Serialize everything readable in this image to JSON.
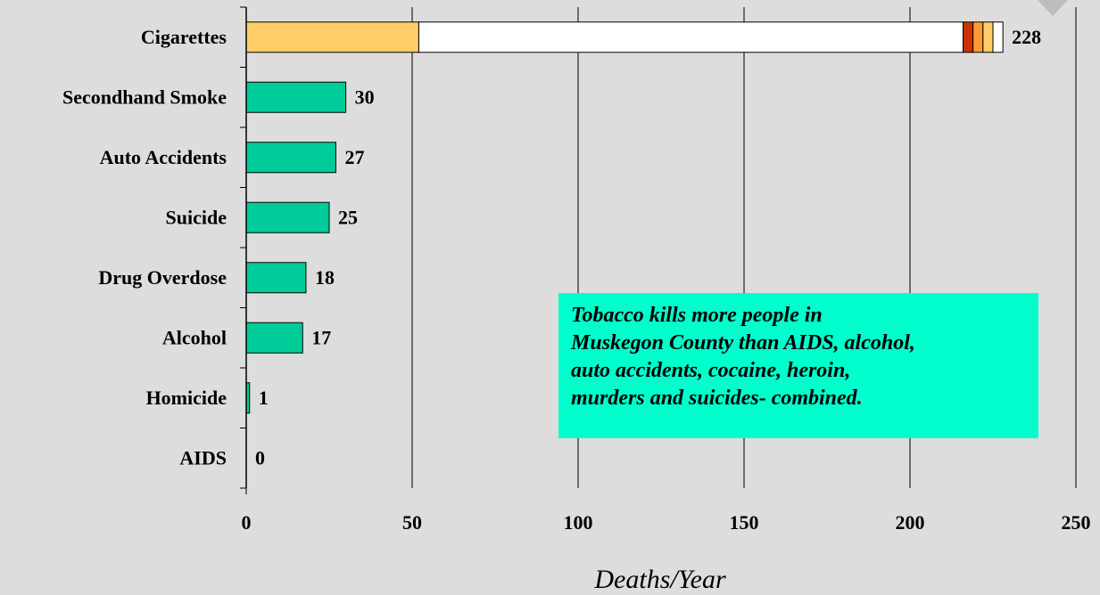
{
  "chart_data": {
    "type": "bar",
    "orientation": "horizontal",
    "categories": [
      "Cigarettes",
      "Secondhand Smoke",
      "Auto Accidents",
      "Suicide",
      "Drug Overdose",
      "Alcohol",
      "Homicide",
      "AIDS"
    ],
    "values": [
      228,
      30,
      27,
      25,
      18,
      17,
      1,
      0
    ],
    "value_labels": [
      "228",
      "30",
      "27",
      "25",
      "18",
      "17",
      "1",
      "0"
    ],
    "cigarette_segments": [
      {
        "value": 52,
        "color": "#ffcc66"
      },
      {
        "value": 164,
        "color": "#ffffff"
      },
      {
        "value": 3,
        "color": "#cc3300"
      },
      {
        "value": 3,
        "color": "#ff9933"
      },
      {
        "value": 3,
        "color": "#ffcc66"
      },
      {
        "value": 3,
        "color": "#ffffff"
      }
    ],
    "bar_color": "#00cc99",
    "xlabel": "Deaths/Year",
    "xlim": [
      0,
      250
    ],
    "xticks": [
      "0",
      "50",
      "100",
      "150",
      "200",
      "250"
    ],
    "grid": true,
    "annotation": {
      "lines": [
        "Tobacco kills more people in",
        "Muskegon County than AIDS, alcohol,",
        "auto accidents, cocaine, heroin,",
        "murders and suicides- combined."
      ],
      "background": "#00ffcc"
    }
  }
}
